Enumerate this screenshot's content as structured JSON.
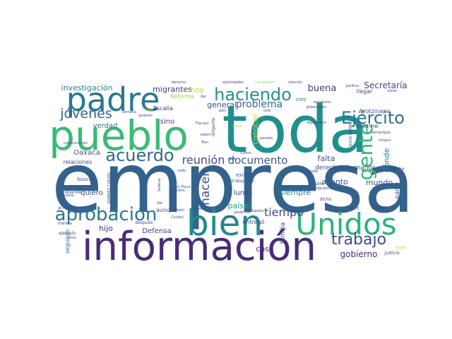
{
  "words": [
    {
      "text": "empresa",
      "color": "#33638d"
    },
    {
      "text": "toda",
      "color": "#21908d"
    },
    {
      "text": "información",
      "color": "#472c7a"
    },
    {
      "text": "pueblo",
      "color": "#3aba76"
    },
    {
      "text": "padre",
      "color": "#2a788e"
    },
    {
      "text": "bien",
      "color": "#23898e"
    },
    {
      "text": "Unidos",
      "color": "#2db27d"
    },
    {
      "text": "aprobación",
      "color": "#2a788e"
    },
    {
      "text": "haciendo",
      "color": "#21918c"
    },
    {
      "text": "Ejército",
      "color": "#2d708e"
    },
    {
      "text": "gente",
      "color": "#35b779"
    },
    {
      "text": "acuerdo",
      "color": "#31688e"
    },
    {
      "text": "jóvenes",
      "color": "#33638d"
    },
    {
      "text": "trabajo",
      "color": "#3e4989"
    },
    {
      "text": "documento",
      "color": "#3b528b"
    },
    {
      "text": "reunión",
      "color": "#3e4a89"
    },
    {
      "text": "problema",
      "color": "#31688e"
    },
    {
      "text": "hacen",
      "color": "#3b528b"
    },
    {
      "text": "tiempo",
      "color": "#3e4989"
    },
    {
      "text": "investigación",
      "color": "#26828e"
    },
    {
      "text": "migrantes",
      "color": "#46327e"
    },
    {
      "text": "buena",
      "color": "#443983"
    },
    {
      "text": "Secretaría",
      "color": "#3f4788"
    },
    {
      "text": "mundo",
      "color": "#3b528b"
    },
    {
      "text": "general",
      "color": "#3d4e8a"
    },
    {
      "text": "verdad",
      "color": "#2e6e8e"
    },
    {
      "text": "hoy",
      "color": "#b5de2b"
    },
    {
      "text": "sino",
      "color": "#433e85"
    },
    {
      "text": "dónde",
      "color": "#26818e"
    },
    {
      "text": "falta",
      "color": "#39568c"
    },
    {
      "text": "asunto",
      "color": "#3b528b"
    },
    {
      "text": "siempre",
      "color": "#24868e"
    },
    {
      "text": "gobierno",
      "color": "#46307e"
    },
    {
      "text": "cosa",
      "color": "#482475"
    },
    {
      "text": "hijo",
      "color": "#482878"
    },
    {
      "text": "Defensa",
      "color": "#433e85"
    },
    {
      "text": "quiero",
      "color": "#3e4989"
    },
    {
      "text": "lunes",
      "color": "#3d4d8a"
    },
    {
      "text": "países",
      "color": "#21a585"
    },
    {
      "text": "disco",
      "color": "#3b528b"
    },
    {
      "text": "Oaxaca",
      "color": "#3d4e8a"
    },
    {
      "text": "relaciones",
      "color": "#3e4a89"
    },
    {
      "text": "familia",
      "color": "#3e4a89"
    },
    {
      "text": "segundo",
      "color": "#2d708e"
    },
    {
      "text": "derechos humanos",
      "color": "#3e4989"
    },
    {
      "text": "parte",
      "color": "#3b528b"
    },
    {
      "text": "conocer",
      "color": "#b5de2b"
    },
    {
      "text": "informe",
      "color": "#3e4989"
    },
    {
      "text": "Ayotzinapa",
      "color": "#39568c"
    },
    {
      "text": "Reforma",
      "color": "#8fd744"
    },
    {
      "text": "fiscalía",
      "color": "#472d7b"
    },
    {
      "text": "aunque",
      "color": "#3e4989"
    },
    {
      "text": "entregó",
      "color": "#3d4d8a"
    },
    {
      "text": "existen",
      "color": "#3b528b"
    },
    {
      "text": "trabajando",
      "color": "#39568c"
    },
    {
      "text": "llegar",
      "color": "#3b528b"
    },
    {
      "text": "creo",
      "color": "#2c728e"
    },
    {
      "text": "buscar",
      "color": "#3e4989"
    },
    {
      "text": "ejemplo",
      "color": "#3e4989"
    },
    {
      "text": "después",
      "color": "#3e4989"
    },
    {
      "text": "menos",
      "color": "#3b528b"
    },
    {
      "text": "primero",
      "color": "#3b528b"
    },
    {
      "text": "seguir",
      "color": "#3e4989"
    },
    {
      "text": "hecho",
      "color": "#472d7b"
    },
    {
      "text": "sólo",
      "color": "#3e4989"
    },
    {
      "text": "dicho",
      "color": "#472d7b"
    },
    {
      "text": "agua",
      "color": "#c2df23"
    },
    {
      "text": "justicia",
      "color": "#3e4989"
    },
    {
      "text": "Tren Maya",
      "color": "#26818e"
    },
    {
      "text": "manera",
      "color": "#3e4989"
    },
    {
      "text": "Haití",
      "color": "#3e4989"
    },
    {
      "text": "Ciudad",
      "color": "#3b528b"
    },
    {
      "text": "aparece",
      "color": "#3e4989"
    },
    {
      "text": "podemos",
      "color": "#3e4989"
    },
    {
      "text": "España",
      "color": "#3e4989"
    },
    {
      "text": "autoridades",
      "color": "#3e4989"
    },
    {
      "text": "compañero",
      "color": "#a0da39"
    },
    {
      "text": "relación",
      "color": "#3e4989"
    },
    {
      "text": "política",
      "color": "#3e4989"
    },
    {
      "text": "dar",
      "color": "#3e4989"
    },
    {
      "text": "país",
      "color": "#3e4989"
    },
    {
      "text": "vida",
      "color": "#3e4989"
    },
    {
      "text": "septiembre",
      "color": "#3e4989"
    },
    {
      "text": "secretario",
      "color": "#3e4989"
    },
    {
      "text": "gobernador",
      "color": "#3e4989"
    },
    {
      "text": "Tlacoyo",
      "color": "#3e4989"
    },
    {
      "text": "saben",
      "color": "#3e4989"
    },
    {
      "text": "dirigente",
      "color": "#3e4989"
    },
    {
      "text": "pasado",
      "color": "#3e4989"
    },
    {
      "text": "Tamaulipas",
      "color": "#3e4989"
    },
    {
      "text": "ningún",
      "color": "#3e4989"
    },
    {
      "text": "viene",
      "color": "#3e4989"
    },
    {
      "text": "derecho",
      "color": "#3e4989"
    },
    {
      "text": "semana",
      "color": "#3e4989"
    },
    {
      "text": "quiénes",
      "color": "#3e4989"
    },
    {
      "text": "llevar",
      "color": "#b5de2b"
    },
    {
      "text": "inicio",
      "color": "#b5de2b"
    },
    {
      "text": "nuevo",
      "color": "#3e4989"
    },
    {
      "text": "obra",
      "color": "#3e4989"
    },
    {
      "text": "veces",
      "color": "#3e4989"
    },
    {
      "text": "cada",
      "color": "#3e4989"
    },
    {
      "text": "encargado",
      "color": "#3e4989"
    },
    {
      "text": "migratorio",
      "color": "#3e4989"
    },
    {
      "text": "comunicación",
      "color": "#3e4989"
    },
    {
      "text": "desarrollo",
      "color": "#3e4989"
    },
    {
      "text": "encuesta",
      "color": "#3e4989"
    },
    {
      "text": "JESÚS RAMÍREZ",
      "color": "#3e4989"
    },
    {
      "text": "RAMÍREZ CUEVAS",
      "color": "#3e4989"
    },
    {
      "text": "SNTE",
      "color": "#3e4989"
    },
    {
      "text": "años",
      "color": "#3e4989"
    },
    {
      "text": "Sedena",
      "color": "#3e4989"
    },
    {
      "text": "Ibá",
      "color": "#3e4989"
    },
    {
      "text": "Tren",
      "color": "#3e4989"
    }
  ]
}
